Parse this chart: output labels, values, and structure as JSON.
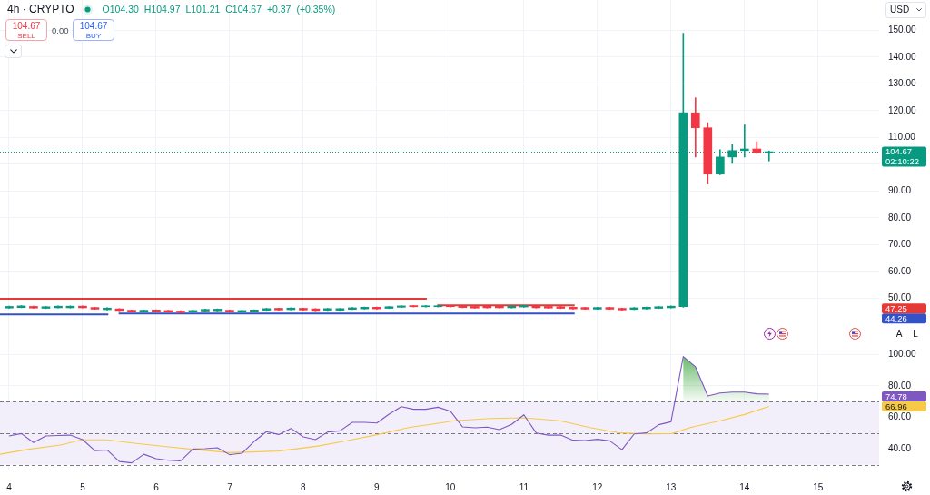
{
  "chart_data": [
    {
      "type": "candlestick",
      "title": "4h · CRYPTO",
      "subtitle": "O104.30 H104.97 L101.21 C104.67 +0.37 (+0.35%)",
      "x": [
        4,
        4.167,
        4.333,
        4.5,
        4.667,
        4.833,
        5,
        5.167,
        5.333,
        5.5,
        5.667,
        5.833,
        6,
        6.167,
        6.333,
        6.5,
        6.667,
        6.833,
        7,
        7.167,
        7.333,
        7.5,
        7.667,
        7.833,
        8,
        8.167,
        8.333,
        8.5,
        8.667,
        8.833,
        9,
        9.167,
        9.333,
        9.5,
        9.667,
        9.833,
        10,
        10.167,
        10.333,
        10.5,
        10.667,
        10.833,
        11,
        11.167,
        11.333,
        11.5,
        11.667,
        11.833,
        12,
        12.167,
        12.333,
        12.5,
        12.667,
        12.833,
        13,
        13.167,
        13.333,
        13.5,
        13.667,
        13.833,
        14,
        14.167,
        14.333
      ],
      "ohlc": [
        [
          46.3,
          47.0,
          46.2,
          46.9
        ],
        [
          46.5,
          47.2,
          46.4,
          47.1
        ],
        [
          46.9,
          47.0,
          46.2,
          46.3
        ],
        [
          46.2,
          46.9,
          46.1,
          46.8
        ],
        [
          46.4,
          47.1,
          46.3,
          47.0
        ],
        [
          46.4,
          47.1,
          46.3,
          47.0
        ],
        [
          47.0,
          47.1,
          46.3,
          46.4
        ],
        [
          46.5,
          46.6,
          45.8,
          45.9
        ],
        [
          45.7,
          46.4,
          45.6,
          46.3
        ],
        [
          46.0,
          46.1,
          45.3,
          45.4
        ],
        [
          45.5,
          45.6,
          44.8,
          44.9
        ],
        [
          44.9,
          45.6,
          44.8,
          45.5
        ],
        [
          45.6,
          45.7,
          44.9,
          45.0
        ],
        [
          45.4,
          45.5,
          44.7,
          44.8
        ],
        [
          45.2,
          45.3,
          44.5,
          44.6
        ],
        [
          44.8,
          45.5,
          44.7,
          45.4
        ],
        [
          45.2,
          45.9,
          45.1,
          45.8
        ],
        [
          45.3,
          46.0,
          45.2,
          45.9
        ],
        [
          45.5,
          45.6,
          44.8,
          44.9
        ],
        [
          44.8,
          45.5,
          44.7,
          45.4
        ],
        [
          45.0,
          45.7,
          44.9,
          45.6
        ],
        [
          45.5,
          46.2,
          45.4,
          46.1
        ],
        [
          46.2,
          46.3,
          45.5,
          45.6
        ],
        [
          45.7,
          46.4,
          45.6,
          46.3
        ],
        [
          46.2,
          46.3,
          45.5,
          45.6
        ],
        [
          46.0,
          46.1,
          45.3,
          45.4
        ],
        [
          45.5,
          46.2,
          45.4,
          46.1
        ],
        [
          45.5,
          46.2,
          45.4,
          46.1
        ],
        [
          45.8,
          46.5,
          45.7,
          46.4
        ],
        [
          46.0,
          46.7,
          45.9,
          46.6
        ],
        [
          46.6,
          46.7,
          45.9,
          46.0
        ],
        [
          46.2,
          46.9,
          46.1,
          46.8
        ],
        [
          46.6,
          47.2,
          46.5,
          47.1
        ],
        [
          47.2,
          47.2,
          46.7,
          46.8
        ],
        [
          46.8,
          47.2,
          46.7,
          47.1
        ],
        [
          46.8,
          47.2,
          46.7,
          47.1
        ],
        [
          47.1,
          47.2,
          46.7,
          46.8
        ],
        [
          47.0,
          47.1,
          46.4,
          46.5
        ],
        [
          46.9,
          47.0,
          46.2,
          46.3
        ],
        [
          47.0,
          47.1,
          46.3,
          46.4
        ],
        [
          47.0,
          47.1,
          46.3,
          46.4
        ],
        [
          46.4,
          47.1,
          46.3,
          47.0
        ],
        [
          46.7,
          47.2,
          46.6,
          47.2
        ],
        [
          47.0,
          47.1,
          46.3,
          46.4
        ],
        [
          46.9,
          47.0,
          46.2,
          46.3
        ],
        [
          46.8,
          46.9,
          46.1,
          46.2
        ],
        [
          46.6,
          46.7,
          45.9,
          46.0
        ],
        [
          46.5,
          46.6,
          45.8,
          45.9
        ],
        [
          45.9,
          46.6,
          45.8,
          46.5
        ],
        [
          46.5,
          46.6,
          45.8,
          45.9
        ],
        [
          46.2,
          46.3,
          45.5,
          45.6
        ],
        [
          45.8,
          46.5,
          45.7,
          46.4
        ],
        [
          46.0,
          46.7,
          45.9,
          46.6
        ],
        [
          46.2,
          46.9,
          46.1,
          46.8
        ],
        [
          46.4,
          47.1,
          46.3,
          47.0
        ],
        [
          46.8,
          148.9,
          46.6,
          119.2
        ],
        [
          119.2,
          124.8,
          102.7,
          113.6
        ],
        [
          113.6,
          115.5,
          92.6,
          96.3
        ],
        [
          96.3,
          105.4,
          96.1,
          102.7
        ],
        [
          102.7,
          107.4,
          100.3,
          105.1
        ],
        [
          105.1,
          114.7,
          102.7,
          105.7
        ],
        [
          105.7,
          108.4,
          104.0,
          104.3
        ],
        [
          104.3,
          104.97,
          101.21,
          104.67
        ]
      ],
      "colors": [
        "#089981",
        "#089981",
        "#f23645",
        "#089981",
        "#089981",
        "#089981",
        "#f23645",
        "#f23645",
        "#089981",
        "#f23645",
        "#f23645",
        "#089981",
        "#f23645",
        "#f23645",
        "#f23645",
        "#089981",
        "#089981",
        "#089981",
        "#f23645",
        "#089981",
        "#089981",
        "#089981",
        "#f23645",
        "#089981",
        "#f23645",
        "#f23645",
        "#089981",
        "#089981",
        "#089981",
        "#089981",
        "#f23645",
        "#089981",
        "#089981",
        "#f23645",
        "#089981",
        "#089981",
        "#f23645",
        "#f23645",
        "#f23645",
        "#f23645",
        "#f23645",
        "#089981",
        "#089981",
        "#f23645",
        "#f23645",
        "#f23645",
        "#f23645",
        "#f23645",
        "#089981",
        "#f23645",
        "#f23645",
        "#089981",
        "#089981",
        "#089981",
        "#089981",
        "#089981",
        "#f23645",
        "#f23645",
        "#089981",
        "#089981",
        "#089981",
        "#f23645",
        "#089981"
      ],
      "series": [
        {
          "type": "line",
          "color": "#e53935",
          "x": [
            3.877,
            9.68
          ],
          "values": [
            49.8,
            49.8
          ]
        },
        {
          "type": "line",
          "color": "#e53935",
          "x": [
            9.82,
            11.69
          ],
          "values": [
            47.3,
            47.3
          ]
        },
        {
          "type": "line",
          "color": "#3451c6",
          "x": [
            3.877,
            5.35
          ],
          "values": [
            43.9,
            43.9
          ]
        },
        {
          "type": "line",
          "color": "#3451c6",
          "x": [
            5.49,
            11.69
          ],
          "values": [
            44.3,
            44.3
          ]
        }
      ],
      "xlim": [
        3.877,
        15.83
      ],
      "xticks": [
        4,
        5,
        6,
        7,
        8,
        9,
        10,
        11,
        12,
        13,
        14,
        15
      ],
      "ylim": [
        33.5,
        161.3
      ],
      "yticks": [
        {
          "value": 50,
          "label": "50.00"
        },
        {
          "value": 60,
          "label": "60.00"
        },
        {
          "value": 70,
          "label": "70.00"
        },
        {
          "value": 80,
          "label": "80.00"
        },
        {
          "value": 90,
          "label": "90.00"
        },
        {
          "value": 100,
          "label": null
        },
        {
          "value": 110,
          "label": "110.00"
        },
        {
          "value": 120,
          "label": "120.00"
        },
        {
          "value": 130,
          "label": "130.00"
        },
        {
          "value": 140,
          "label": "140.00"
        },
        {
          "value": 150,
          "label": "150.00"
        }
      ],
      "tick_labels": "y",
      "grid": true,
      "ref_lines": [
        {
          "axis": "y",
          "value": 104.67,
          "label": "104.67",
          "color": "#089981",
          "line_style": "dotted"
        }
      ],
      "annotations": [
        "104.67",
        "SELL",
        "0.00",
        "104.67",
        "BUY",
        "USD",
        "02:10:22",
        "A",
        "L",
        "47.25",
        "44.26"
      ]
    },
    {
      "type": "line",
      "x": [
        4,
        4.167,
        4.333,
        4.5,
        4.667,
        4.833,
        5,
        5.167,
        5.333,
        5.5,
        5.667,
        5.833,
        6,
        6.167,
        6.333,
        6.5,
        6.667,
        6.833,
        7,
        7.167,
        7.333,
        7.5,
        7.667,
        7.833,
        8,
        8.167,
        8.333,
        8.5,
        8.667,
        8.833,
        9,
        9.167,
        9.333,
        9.5,
        9.667,
        9.833,
        10,
        10.167,
        10.333,
        10.5,
        10.667,
        10.833,
        11,
        11.167,
        11.333,
        11.5,
        11.667,
        11.833,
        12,
        12.167,
        12.333,
        12.5,
        12.667,
        12.833,
        13,
        13.167,
        13.333,
        13.5,
        13.667,
        13.833,
        14,
        14.167,
        14.333
      ],
      "series": [
        {
          "color": "#7e57c2",
          "values": [
            48.3,
            49.8,
            44.1,
            48.3,
            48.6,
            48.8,
            46.0,
            39.0,
            39.4,
            32.1,
            31.2,
            36.7,
            33.9,
            32.9,
            32.5,
            40.0,
            40.2,
            40.8,
            36.4,
            37.3,
            44.8,
            51.0,
            49.2,
            53.1,
            47.7,
            46.0,
            50.8,
            51.5,
            56.9,
            56.9,
            56.5,
            62.1,
            66.9,
            65.2,
            65.2,
            66.5,
            64.0,
            54.0,
            53.5,
            53.9,
            52.3,
            55.6,
            61.7,
            50.2,
            48.8,
            48.8,
            45.6,
            45.4,
            46.2,
            45.2,
            39.6,
            49.6,
            50.2,
            55.4,
            57.3,
            98.6,
            92.1,
            73.6,
            75.5,
            76.1,
            76.1,
            75.0,
            74.8
          ],
          "lower": [
            null,
            null,
            null,
            null,
            null,
            null,
            null,
            null,
            null,
            null,
            null,
            null,
            null,
            null,
            null,
            null,
            null,
            null,
            null,
            null,
            null,
            null,
            null,
            null,
            null,
            null,
            null,
            null,
            null,
            null,
            null,
            null,
            null,
            null,
            null,
            null,
            null,
            null,
            null,
            null,
            null,
            null,
            null,
            null,
            null,
            null,
            null,
            null,
            null,
            null,
            null,
            null,
            null,
            null,
            null,
            70,
            70,
            70,
            70,
            70,
            70,
            70,
            70
          ],
          "upper": [
            null,
            null,
            null,
            null,
            null,
            null,
            null,
            null,
            null,
            null,
            null,
            null,
            null,
            null,
            null,
            null,
            null,
            null,
            null,
            null,
            null,
            null,
            null,
            null,
            null,
            null,
            null,
            null,
            null,
            null,
            null,
            null,
            null,
            null,
            null,
            null,
            null,
            null,
            null,
            null,
            null,
            null,
            null,
            null,
            null,
            null,
            null,
            null,
            null,
            null,
            null,
            null,
            null,
            null,
            null,
            98.6,
            92.1,
            73.6,
            75.5,
            76.1,
            76.1,
            75.0,
            74.8
          ]
        },
        {
          "color": "#f7c948",
          "x": [
            3.877,
            4.288,
            4.7,
            4.99,
            5.32,
            5.73,
            6.14,
            6.55,
            7.0,
            7.66,
            8.2,
            8.61,
            9.02,
            9.43,
            9.84,
            10.05,
            10.54,
            11.0,
            11.49,
            11.9,
            12.31,
            12.68,
            13.01,
            13.26,
            13.67,
            14.0,
            14.333
          ],
          "values": [
            36.7,
            40.0,
            42.5,
            45.8,
            45.8,
            43.5,
            41.5,
            39.6,
            37.7,
            38.7,
            41.9,
            45.4,
            49.2,
            53.6,
            56.3,
            57.9,
            59.4,
            59.8,
            57.9,
            53.6,
            50.2,
            49.6,
            49.8,
            53.6,
            57.9,
            61.9,
            67.0
          ]
        }
      ],
      "xlim": [
        3.877,
        15.83
      ],
      "xticks": [
        4,
        5,
        6,
        7,
        8,
        9,
        10,
        11,
        12,
        13,
        14,
        15
      ],
      "ylim": [
        26.4,
        107.6
      ],
      "yticks": [
        {
          "value": 40,
          "label": "40.00"
        },
        {
          "value": 60,
          "label": "60.00"
        },
        {
          "value": 80,
          "label": "80.00"
        },
        {
          "value": 100,
          "label": "100.00"
        }
      ],
      "grid": true,
      "ref_lines": [
        {
          "axis": "y",
          "value": 70,
          "color": "#787b86",
          "line_style": "dashed"
        },
        {
          "axis": "y",
          "value": 50,
          "color": "#787b86",
          "line_style": "dashed"
        },
        {
          "axis": "y",
          "value": 30,
          "color": "#787b86",
          "line_style": "dashed"
        }
      ],
      "bands": [
        {
          "axis": "y",
          "from": 30,
          "to": 70,
          "color": "#f3effa"
        }
      ],
      "annotations": [
        "74.78",
        "66.96"
      ]
    }
  ]
}
